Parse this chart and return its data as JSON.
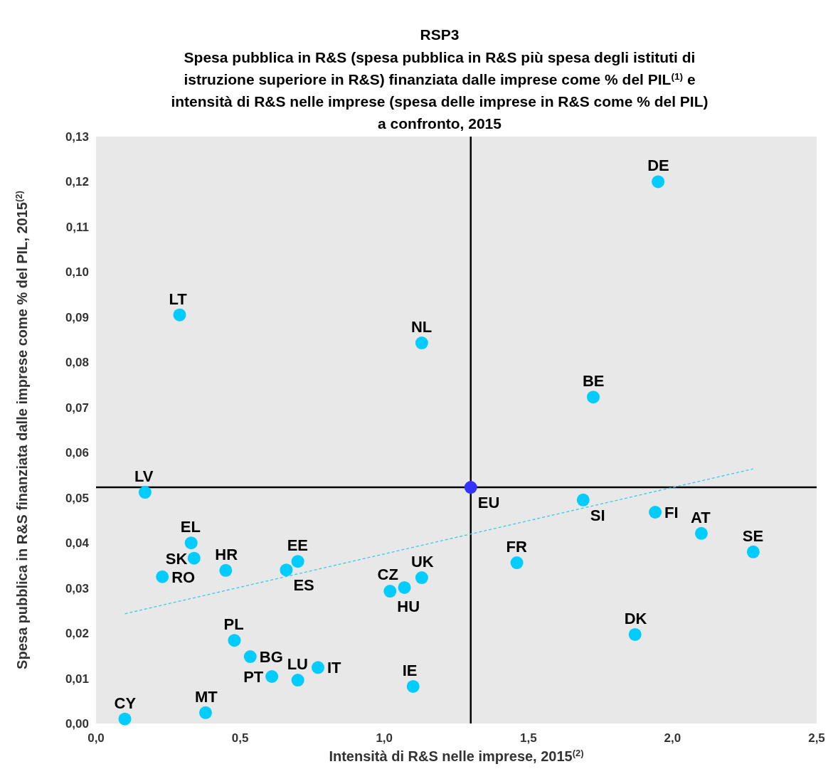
{
  "chart_data": {
    "type": "scatter",
    "title": "RSP3",
    "subtitle": "Spesa pubblica in R&S (spesa pubblica in R&S più spesa degli istituti di\nistruzione superiore in R&S) finanziata dalle imprese come % del PIL$^{(1)}$ e\nintensità di R&S nelle imprese (spesa delle imprese in R&S come % del PIL)\na confronto, 2015",
    "xlabel": "Intensità di R&S nelle imprese, 2015$^{(2)}$",
    "ylabel": "Spesa pubblica in R&S finanziata dalle imprese come % del PIL, 2015$^{(2)}$",
    "xlim": [
      0,
      2.5
    ],
    "xticks": [
      {
        "value": 0,
        "label": "0,0"
      },
      {
        "value": 0.5,
        "label": "0,5"
      },
      {
        "value": 1,
        "label": "1,0"
      },
      {
        "value": 1.5,
        "label": "1,5"
      },
      {
        "value": 2,
        "label": "2,0"
      },
      {
        "value": 2.5,
        "label": "2,5"
      }
    ],
    "ylim": [
      0,
      0.13
    ],
    "yticks": [
      {
        "value": 0,
        "label": "0,00"
      },
      {
        "value": 0.01,
        "label": "0,01"
      },
      {
        "value": 0.02,
        "label": "0,02"
      },
      {
        "value": 0.03,
        "label": "0,03"
      },
      {
        "value": 0.04,
        "label": "0,04"
      },
      {
        "value": 0.05,
        "label": "0,05"
      },
      {
        "value": 0.06,
        "label": "0,06"
      },
      {
        "value": 0.07,
        "label": "0,07"
      },
      {
        "value": 0.08,
        "label": "0,08"
      },
      {
        "value": 0.09,
        "label": "0,09"
      },
      {
        "value": 0.1,
        "label": "0,10"
      },
      {
        "value": 0.11,
        "label": "0,11"
      },
      {
        "value": 0.12,
        "label": "0,12"
      },
      {
        "value": 0.13,
        "label": "0,13"
      }
    ],
    "grid": false,
    "marker": "circle",
    "series": [
      {
        "color": "#00ccff",
        "x": [
          0.1,
          0.38,
          0.17,
          0.33,
          0.34,
          0.23,
          0.45,
          0.7,
          0.66,
          1.02,
          1.07,
          1.13,
          0.48,
          0.535,
          0.61,
          0.7,
          0.77,
          1.1,
          1.69,
          1.94,
          2.1,
          2.28,
          1.46,
          1.87,
          1.95,
          0.29,
          1.13,
          1.725
        ],
        "values": [
          0.001,
          0.0024,
          0.0512,
          0.04,
          0.0366,
          0.0325,
          0.0339,
          0.0359,
          0.034,
          0.0293,
          0.0301,
          0.0323,
          0.0184,
          0.0148,
          0.0104,
          0.0096,
          0.0124,
          0.0082,
          0.0495,
          0.0468,
          0.0421,
          0.038,
          0.0356,
          0.0197,
          0.12,
          0.0905,
          0.0843,
          0.0723
        ]
      },
      {
        "color": "#3333ff",
        "x": [
          1.3
        ],
        "values": [
          0.0523
        ]
      },
      {
        "type": "line",
        "color": "#33ccee",
        "line_style": "dashed",
        "marker": "none",
        "x": [
          0.1,
          2.28
        ],
        "values": [
          0.0243,
          0.0564
        ]
      }
    ],
    "ref_lines": [
      {
        "axis": "x",
        "value": 1.3,
        "color": "#000000"
      },
      {
        "axis": "y",
        "value": 0.0523,
        "color": "#000000"
      }
    ],
    "annotations": [
      {
        "text": "CY",
        "x": 0.1,
        "y": 0.001
      },
      {
        "text": "MT",
        "x": 0.38,
        "y": 0.0024
      },
      {
        "text": "LV",
        "x": 0.17,
        "y": 0.0512
      },
      {
        "text": "EL",
        "x": 0.33,
        "y": 0.04
      },
      {
        "text": "SK",
        "x": 0.34,
        "y": 0.0366
      },
      {
        "text": "RO",
        "x": 0.23,
        "y": 0.0325
      },
      {
        "text": "HR",
        "x": 0.45,
        "y": 0.0339
      },
      {
        "text": "EE",
        "x": 0.7,
        "y": 0.0359
      },
      {
        "text": "ES",
        "x": 0.66,
        "y": 0.034
      },
      {
        "text": "HU",
        "x": 1.02,
        "y": 0.0293
      },
      {
        "text": "CZ",
        "x": 1.07,
        "y": 0.0301
      },
      {
        "text": "UK",
        "x": 1.13,
        "y": 0.0323
      },
      {
        "text": "PL",
        "x": 0.48,
        "y": 0.0184
      },
      {
        "text": "BG",
        "x": 0.535,
        "y": 0.0148
      },
      {
        "text": "PT",
        "x": 0.61,
        "y": 0.0104
      },
      {
        "text": "LU",
        "x": 0.7,
        "y": 0.0096
      },
      {
        "text": "IT",
        "x": 0.77,
        "y": 0.0124
      },
      {
        "text": "IE",
        "x": 1.1,
        "y": 0.0082
      },
      {
        "text": "SI",
        "x": 1.69,
        "y": 0.0495
      },
      {
        "text": "FI",
        "x": 1.94,
        "y": 0.0468
      },
      {
        "text": "AT",
        "x": 2.1,
        "y": 0.0421
      },
      {
        "text": "SE",
        "x": 2.28,
        "y": 0.038
      },
      {
        "text": "FR",
        "x": 1.46,
        "y": 0.0356
      },
      {
        "text": "DK",
        "x": 1.87,
        "y": 0.0197
      },
      {
        "text": "DE",
        "x": 1.95,
        "y": 0.12
      },
      {
        "text": "LT",
        "x": 0.29,
        "y": 0.0905
      },
      {
        "text": "NL",
        "x": 1.13,
        "y": 0.0843
      },
      {
        "text": "BE",
        "x": 1.725,
        "y": 0.0723
      },
      {
        "text": "EU",
        "x": 1.3,
        "y": 0.0523
      }
    ]
  }
}
